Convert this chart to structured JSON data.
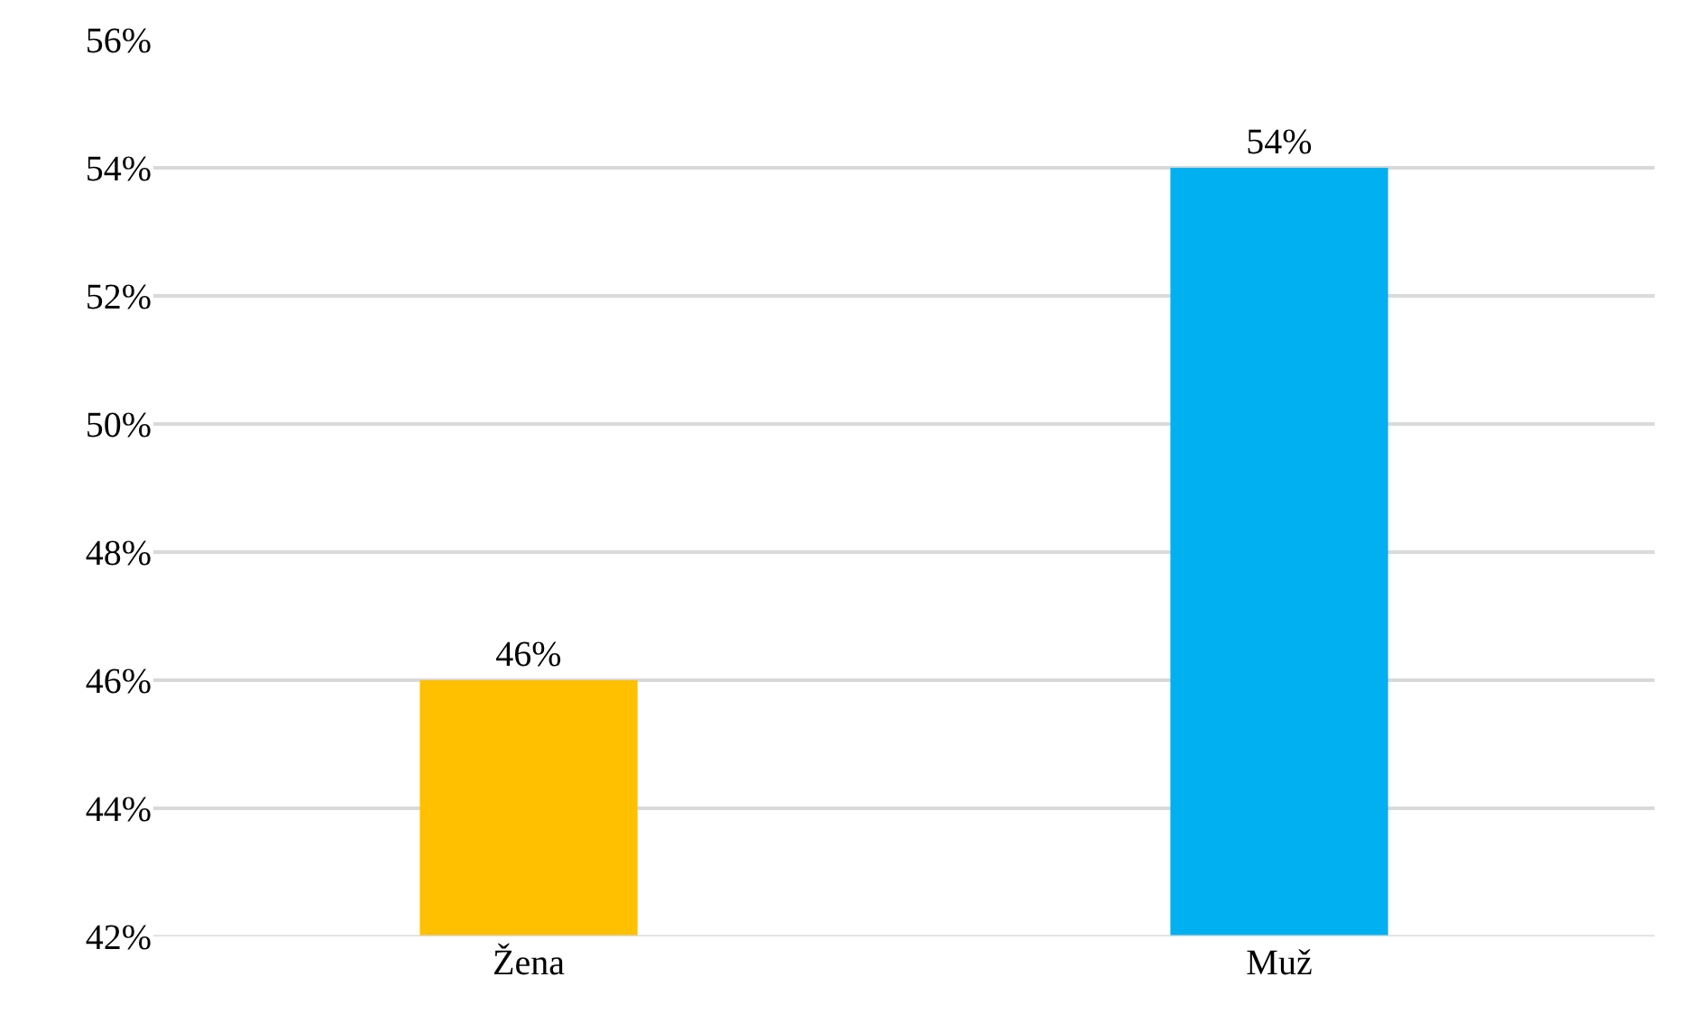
{
  "chart_data": {
    "type": "bar",
    "categories": [
      "Žena",
      "Muž"
    ],
    "values": [
      46,
      54
    ],
    "colors": [
      "#ffc000",
      "#00b0f0"
    ],
    "value_labels": [
      "46%",
      "54%"
    ],
    "ylim": [
      42,
      56
    ],
    "yticks": [
      {
        "value": 42,
        "label": "42%"
      },
      {
        "value": 44,
        "label": "44%"
      },
      {
        "value": 46,
        "label": "46%"
      },
      {
        "value": 48,
        "label": "48%"
      },
      {
        "value": 50,
        "label": "50%"
      },
      {
        "value": 52,
        "label": "52%"
      },
      {
        "value": 54,
        "label": "54%"
      },
      {
        "value": 56,
        "label": "56%"
      }
    ],
    "grid": "y"
  }
}
